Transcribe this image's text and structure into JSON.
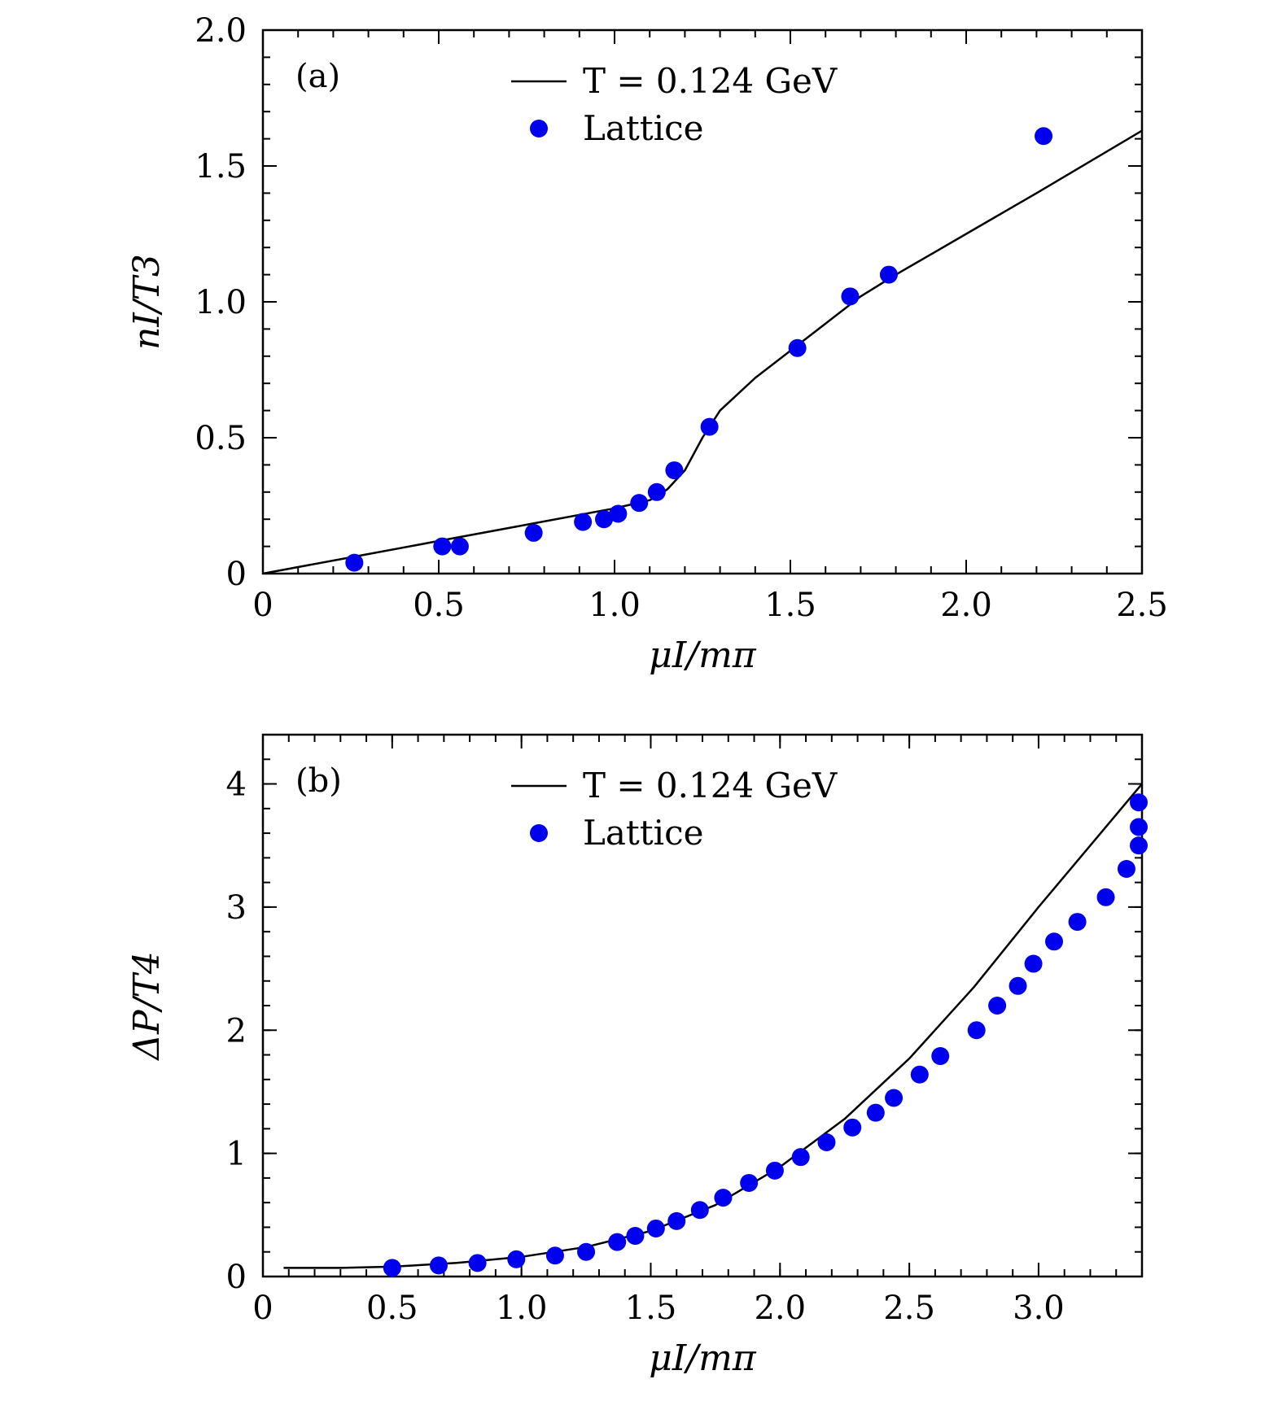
{
  "chart_data": [
    {
      "type": "line+scatter",
      "panel_label": "(a)",
      "xlabel": "μI/mπ",
      "ylabel": "nI/T3",
      "xlim": [
        0,
        2.5
      ],
      "ylim": [
        0,
        2.0
      ],
      "xticks": [
        0,
        0.5,
        1.0,
        1.5,
        2.0,
        2.5
      ],
      "xtick_labels": [
        "0",
        "0.5",
        "1.0",
        "1.5",
        "2.0",
        "2.5"
      ],
      "yticks": [
        0,
        0.5,
        1.0,
        1.5,
        2.0
      ],
      "ytick_labels": [
        "0",
        "0.5",
        "1.0",
        "1.5",
        "2.0"
      ],
      "legend": {
        "line": "T = 0.124 GeV",
        "points": "Lattice",
        "location": "top-center"
      },
      "line_series": {
        "name": "T = 0.124 GeV",
        "x": [
          0,
          0.25,
          0.5,
          0.75,
          1.0,
          1.1,
          1.15,
          1.2,
          1.25,
          1.3,
          1.4,
          1.5,
          1.6,
          1.7,
          1.8,
          2.0,
          2.2,
          2.5
        ],
        "y": [
          0,
          0.06,
          0.12,
          0.18,
          0.24,
          0.27,
          0.31,
          0.38,
          0.5,
          0.6,
          0.72,
          0.82,
          0.92,
          1.02,
          1.1,
          1.25,
          1.4,
          1.63
        ]
      },
      "points_series": {
        "name": "Lattice",
        "x": [
          0.26,
          0.51,
          0.56,
          0.77,
          0.91,
          0.97,
          1.01,
          1.07,
          1.12,
          1.17,
          1.27,
          1.52,
          1.67,
          1.78,
          2.22
        ],
        "y": [
          0.04,
          0.1,
          0.1,
          0.15,
          0.19,
          0.2,
          0.22,
          0.26,
          0.3,
          0.38,
          0.54,
          0.83,
          1.02,
          1.1,
          1.61
        ]
      }
    },
    {
      "type": "line+scatter",
      "panel_label": "(b)",
      "xlabel": "μI/mπ",
      "ylabel": "ΔP/T4",
      "xlim": [
        0,
        3.4
      ],
      "ylim": [
        0,
        4.4
      ],
      "xticks": [
        0,
        0.5,
        1.0,
        1.5,
        2.0,
        2.5,
        3.0
      ],
      "xtick_labels": [
        "0",
        "0.5",
        "1.0",
        "1.5",
        "2.0",
        "2.5",
        "3.0"
      ],
      "yticks": [
        0,
        1,
        2,
        3,
        4
      ],
      "ytick_labels": [
        "0",
        "1",
        "2",
        "3",
        "4"
      ],
      "legend": {
        "line": "T = 0.124 GeV",
        "points": "Lattice",
        "location": "top-center"
      },
      "line_series": {
        "name": "T = 0.124 GeV",
        "x": [
          0.08,
          0.3,
          0.5,
          0.75,
          1.0,
          1.25,
          1.5,
          1.75,
          2.0,
          2.25,
          2.5,
          2.75,
          3.0,
          3.2,
          3.4
        ],
        "y": [
          0.07,
          0.07,
          0.08,
          0.11,
          0.16,
          0.24,
          0.37,
          0.58,
          0.89,
          1.28,
          1.77,
          2.35,
          3.0,
          3.5,
          4.0
        ]
      },
      "points_series": {
        "name": "Lattice",
        "x": [
          0.5,
          0.68,
          0.83,
          0.98,
          1.13,
          1.25,
          1.37,
          1.44,
          1.52,
          1.6,
          1.69,
          1.78,
          1.88,
          1.98,
          2.08,
          2.18,
          2.28,
          2.37,
          2.44,
          2.54,
          2.62,
          2.76,
          2.84,
          2.92,
          2.98,
          3.06,
          3.15,
          3.26,
          3.34,
          3.39,
          3.44,
          3.47
        ],
        "y": [
          0.07,
          0.09,
          0.11,
          0.14,
          0.17,
          0.2,
          0.28,
          0.33,
          0.39,
          0.45,
          0.54,
          0.64,
          0.76,
          0.86,
          0.97,
          1.09,
          1.21,
          1.33,
          1.45,
          1.64,
          1.79,
          2.0,
          2.2,
          2.36,
          2.54,
          2.72,
          2.88,
          3.08,
          3.31,
          3.5,
          3.65,
          3.85
        ]
      }
    }
  ]
}
